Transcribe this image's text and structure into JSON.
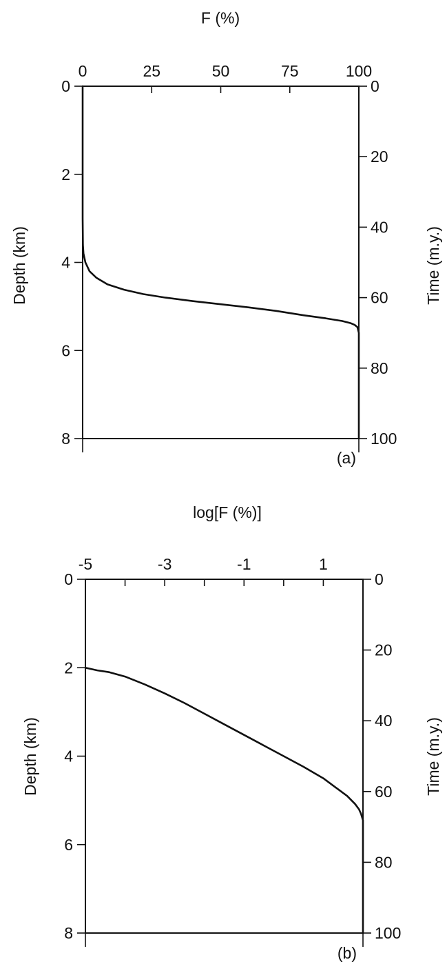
{
  "chart_data": [
    {
      "type": "line",
      "panel_label": "(a)",
      "xlabel": "F (%)",
      "ylabel": "Depth (km)",
      "y2label": "Time (m.y.)",
      "xlim": [
        0,
        100
      ],
      "ylim": [
        0,
        8
      ],
      "y2lim": [
        0,
        100
      ],
      "x_ticks": [
        0,
        25,
        50,
        75,
        100
      ],
      "x_tick_labels": [
        "0",
        "25",
        "50",
        "75",
        "100"
      ],
      "y_ticks": [
        0,
        2,
        4,
        6,
        8
      ],
      "y_tick_labels": [
        "0",
        "2",
        "4",
        "6",
        "8"
      ],
      "y2_ticks": [
        0,
        20,
        40,
        60,
        80,
        100
      ],
      "y2_tick_labels": [
        "0",
        "20",
        "40",
        "60",
        "80",
        "100"
      ],
      "series": [
        {
          "x": [
            0.0,
            0.0,
            0.1,
            0.3,
            1.0,
            2.5,
            5.0,
            9.0,
            15.0,
            22.0,
            30.0,
            40.0,
            50.0,
            60.0,
            70.0,
            80.0,
            88.0,
            94.0,
            97.0,
            98.5,
            99.5,
            100.0,
            100.0
          ],
          "y": [
            0.0,
            3.0,
            3.6,
            3.8,
            4.0,
            4.2,
            4.35,
            4.5,
            4.62,
            4.72,
            4.8,
            4.88,
            4.95,
            5.02,
            5.1,
            5.2,
            5.27,
            5.33,
            5.38,
            5.42,
            5.47,
            5.6,
            8.0
          ]
        }
      ]
    },
    {
      "type": "line",
      "panel_label": "(b)",
      "xlabel": "log[F (%)]",
      "ylabel": "Depth (km)",
      "y2label": "Time (m.y.)",
      "xlim": [
        -5,
        2
      ],
      "ylim": [
        0,
        8
      ],
      "y2lim": [
        0,
        100
      ],
      "x_ticks": [
        -5,
        -4,
        -3,
        -2,
        -1,
        0,
        1,
        2
      ],
      "x_tick_labels": [
        "-5",
        "",
        "-3",
        "",
        "-1",
        "",
        "1",
        ""
      ],
      "y_ticks": [
        0,
        2,
        4,
        6,
        8
      ],
      "y_tick_labels": [
        "0",
        "2",
        "4",
        "6",
        "8"
      ],
      "y2_ticks": [
        0,
        20,
        40,
        60,
        80,
        100
      ],
      "y2_tick_labels": [
        "0",
        "20",
        "40",
        "60",
        "80",
        "100"
      ],
      "series": [
        {
          "x": [
            -5.0,
            -4.7,
            -4.4,
            -4.0,
            -3.5,
            -3.0,
            -2.5,
            -2.0,
            -1.5,
            -1.0,
            -0.5,
            0.0,
            0.5,
            1.0,
            1.3,
            1.6,
            1.8,
            1.9,
            1.95,
            2.0,
            2.0
          ],
          "y": [
            2.0,
            2.06,
            2.1,
            2.2,
            2.38,
            2.58,
            2.8,
            3.04,
            3.28,
            3.52,
            3.76,
            4.0,
            4.24,
            4.5,
            4.7,
            4.9,
            5.08,
            5.2,
            5.3,
            5.45,
            8.0
          ]
        }
      ]
    }
  ]
}
